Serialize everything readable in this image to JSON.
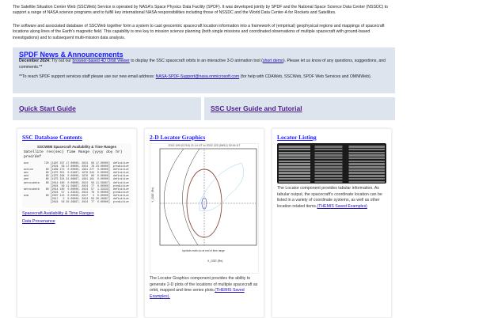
{
  "intro": {
    "p1": "The Satellite Situation Center Web (SSCWeb) Service is operated by NASA's Space Physics Data Facility (SPDF). It was developed jointly by SPDF and the National Space Science Data Center (NSSDC) to support a range of NASA science programs and to fulfill key international NASA responsibilities including those of NSSDC and the World Data Center-A for Rockets and Satellites.",
    "p2": "The software and associated database of SSCWeb together form a system to cast geocentric spacecraft location information into a framework of (empirical) geophysical regions and mappings of spacecraft locations along lines of the Earth's magnetic field. This capability is one key to mission science planning (both single missions and coordinated observations of multiple spacecraft with ground-based investigations) and to subsequent multi-mission data analysis."
  },
  "news": {
    "title": "SPDF News & Announcements",
    "date": "December 2024:",
    "t1": " Try out our ",
    "link1": "browser-based 4D Orbit Viewer",
    "t2": " to display the SSC spacecraft orbits in an interactive 3-D animation tool (",
    "link2": "short demo",
    "t3": "). Please let us know of any questions, suggestions, and comments.**",
    "t4": "**To reach SPDF support services staff please use our new email address: ",
    "email": "NASA-SPDF-Support@nasa.onmicrosoft.com",
    "t5": " (for help with CDAWeb, SSCWeb, SPDF Web Services and OMNIWeb)."
  },
  "guides": {
    "quick": "Quick Start Guide",
    "user": "SSC User Guide and Tutorial"
  },
  "db": {
    "title": "SSC Database Contents",
    "table_title": "SSCWEB Spacecraft Availability & Time Ranges",
    "header": "Satellite       res(sec)     Time Range (yyyy doy hr)        pred/def",
    "rows": [
      "ace          720 [1997 237 17.00000, 2024  56 17.00000]  definitive",
      "                 [2024  56 17.00000, 2024  78 23.00000]  predictive",
      "active        60 [1989 272  0.00000, 1991 277  0.00000]  definitive",
      "aec           60 [1975 351  0.01667, 1978 344  0.00000]  definitive",
      "aed           60 [1975 298  0.00000, 1976  60  0.00000]  definitive",
      "aee           60 [1975 324 21.06667, 1981 161  0.00000]  definitive",
      "aerocubeta    60 [2014 180  0.00000, 2024  56 11.56667]  definitive",
      "                 [2024  56 11.56667, 2024  77  0.00000]  predictive",
      "aerocubetb    60 [2014 180  0.00000, 2024  57  1.33333]  definitive",
      "                 [2024  57  1.33333, 2024  78  0.00000]  predictive",
      "aim           60 [2007 115  0.00000, 2017   5  0.00000]  definitive",
      "                 [2017   5  0.00000, 2024  56 20.26667]  definitive",
      "                 [2024  56 20.26667, 2024  77  0.00000]  predictive"
    ],
    "link1": "Spacecraft Availability & Time Ranges",
    "link2": "Data Provenance"
  },
  "graphics": {
    "title": "2-D Locator Graphics",
    "plot_title": "2022 199 (07/18) 21:14 UT to 2022 223 (08/11) 02:44 UT",
    "xlabel": "X_GSE (Re)",
    "ylabel": "Y_GSE (Re)",
    "legend": "symbols mark s/c at end of time range",
    "desc": "The Locator Graphics component provides the ability to generate 2-D plots of the locations of multiple spacecraft as orbit, mapped and time series plots.",
    "link": "(THEMIS Saved Examples)."
  },
  "listing": {
    "title": "Locator Listing",
    "desc": "The Locator component provides tabular information. As tabular output, the spacecraft's coordinate location can be listed in a variety of coordinate systems, as well as other location related items.",
    "link": "(THEMIS Saved Examples)"
  }
}
